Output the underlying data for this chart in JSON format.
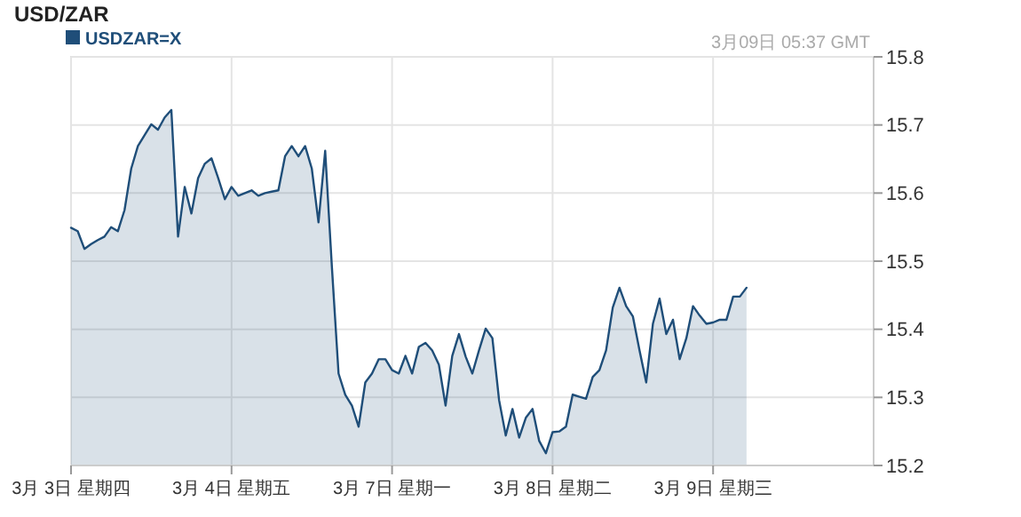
{
  "chart_data": {
    "type": "area",
    "title": "USD/ZAR",
    "annotations": [
      "3月09日 05:37 GMT"
    ],
    "categories": [
      "3月 3日 星期四",
      null,
      null,
      null,
      null,
      null,
      null,
      null,
      null,
      null,
      null,
      null,
      null,
      null,
      null,
      null,
      null,
      null,
      null,
      null,
      null,
      null,
      null,
      null,
      "3月 4日 星期五",
      null,
      null,
      null,
      null,
      null,
      null,
      null,
      null,
      null,
      null,
      null,
      null,
      null,
      null,
      null,
      null,
      null,
      null,
      null,
      null,
      null,
      null,
      null,
      "3月 7日 星期一",
      null,
      null,
      null,
      null,
      null,
      null,
      null,
      null,
      null,
      null,
      null,
      null,
      null,
      null,
      null,
      null,
      null,
      null,
      null,
      null,
      null,
      null,
      null,
      "3月 8日 星期二",
      null,
      null,
      null,
      null,
      null,
      null,
      null,
      null,
      null,
      null,
      null,
      null,
      null,
      null,
      null,
      null,
      null,
      null,
      null,
      null,
      null,
      null,
      null,
      "3月 9日 星期三",
      null,
      null,
      null,
      null,
      null,
      null,
      null,
      null,
      null,
      null,
      null,
      null,
      null,
      null,
      null,
      null,
      null,
      null,
      null,
      null,
      null,
      null,
      null
    ],
    "series": [
      {
        "name": "USDZAR=X",
        "color": "#1f4e79",
        "values": [
          15.549,
          15.544,
          15.518,
          15.525,
          15.531,
          15.536,
          15.55,
          15.544,
          15.575,
          15.636,
          15.669,
          15.685,
          15.701,
          15.693,
          15.711,
          15.722,
          15.536,
          15.609,
          15.57,
          15.622,
          15.643,
          15.651,
          15.622,
          15.591,
          15.609,
          15.596,
          15.6,
          15.604,
          15.596,
          15.6,
          15.602,
          15.604,
          15.654,
          15.669,
          15.654,
          15.669,
          15.636,
          15.557,
          15.662,
          15.492,
          15.335,
          15.304,
          15.288,
          15.257,
          15.322,
          15.335,
          15.356,
          15.356,
          15.34,
          15.335,
          15.361,
          15.335,
          15.374,
          15.38,
          15.369,
          15.348,
          15.288,
          15.361,
          15.393,
          15.36,
          15.335,
          15.369,
          15.401,
          15.387,
          15.296,
          15.244,
          15.283,
          15.241,
          15.27,
          15.283,
          15.236,
          15.218,
          15.249,
          15.25,
          15.257,
          15.304,
          15.301,
          15.298,
          15.33,
          15.34,
          15.369,
          15.432,
          15.461,
          15.434,
          15.419,
          15.369,
          15.322,
          15.408,
          15.445,
          15.393,
          15.414,
          15.356,
          15.387,
          15.434,
          15.42,
          15.408,
          15.41,
          15.414,
          15.414,
          15.448,
          15.448,
          15.461,
          null,
          null,
          null,
          null,
          null,
          null,
          null,
          null,
          null,
          null,
          null,
          null,
          null,
          null,
          null,
          null,
          null,
          null
        ]
      }
    ],
    "ylim": [
      15.2,
      15.8
    ],
    "yticks": [
      15.2,
      15.3,
      15.4,
      15.5,
      15.6,
      15.7,
      15.8
    ],
    "grid": true,
    "legend": "top left"
  }
}
